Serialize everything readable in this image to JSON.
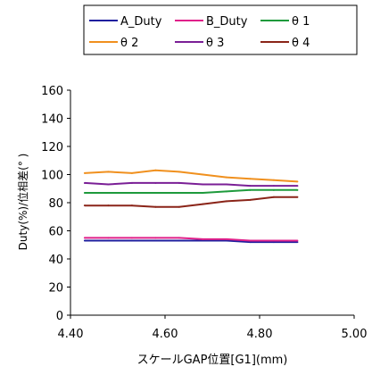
{
  "chart_data": {
    "type": "line",
    "xlabel": "スケールGAP位置[G1](mm)",
    "ylabel": "Duty(%)/位相差(° )",
    "xlim": [
      4.4,
      5.0
    ],
    "ylim": [
      0,
      160
    ],
    "xticks": [
      "4.40",
      "4.60",
      "4.80",
      "5.00"
    ],
    "xtick_values": [
      4.4,
      4.6,
      4.8,
      5.0
    ],
    "yticks": [
      "0",
      "20",
      "40",
      "60",
      "80",
      "100",
      "120",
      "140",
      "160"
    ],
    "ytick_values": [
      0,
      20,
      40,
      60,
      80,
      100,
      120,
      140,
      160
    ],
    "grid": false,
    "legend_position": "top",
    "x": [
      4.43,
      4.48,
      4.53,
      4.58,
      4.63,
      4.68,
      4.73,
      4.78,
      4.83,
      4.88
    ],
    "series": [
      {
        "name": "A_Duty",
        "color": "#1f1f9f",
        "values": [
          53,
          53,
          53,
          53,
          53,
          53,
          53,
          52,
          52,
          52
        ]
      },
      {
        "name": "B_Duty",
        "color": "#e0208a",
        "values": [
          55,
          55,
          55,
          55,
          55,
          54,
          54,
          53,
          53,
          53
        ]
      },
      {
        "name": "θ 1",
        "color": "#1e9a3c",
        "values": [
          87,
          87,
          87,
          87,
          87,
          87,
          88,
          89,
          89,
          89
        ]
      },
      {
        "name": "θ 2",
        "color": "#f0901e",
        "values": [
          101,
          102,
          101,
          103,
          102,
          100,
          98,
          97,
          96,
          95
        ]
      },
      {
        "name": "θ 3",
        "color": "#7a1f96",
        "values": [
          94,
          93,
          94,
          94,
          94,
          93,
          93,
          92,
          92,
          92
        ]
      },
      {
        "name": "θ 4",
        "color": "#8a2418",
        "values": [
          78,
          78,
          78,
          77,
          77,
          79,
          81,
          82,
          84,
          84
        ]
      }
    ]
  }
}
